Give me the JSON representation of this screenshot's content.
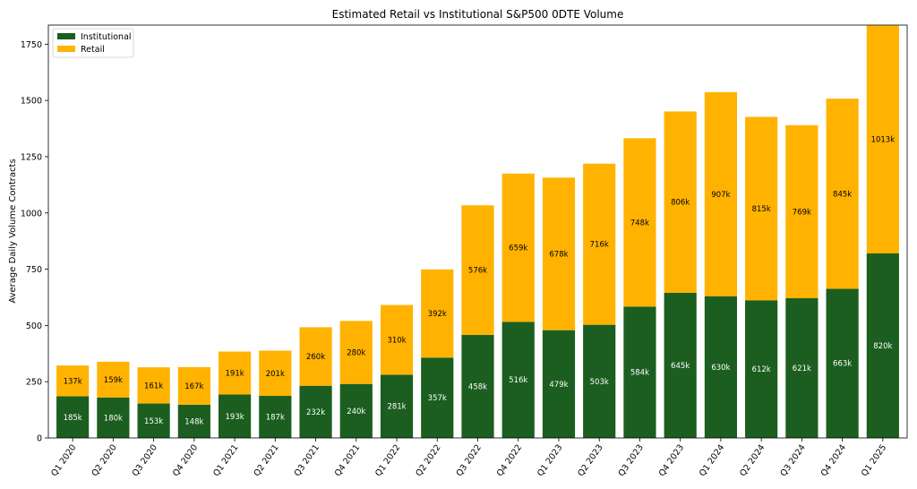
{
  "chart_data": {
    "type": "bar",
    "stacked": true,
    "title": "Estimated Retail vs Institutional S&P500 0DTE Volume",
    "xlabel": "",
    "ylabel": "Average Daily Volume Contracts",
    "ylim": [
      0,
      1835
    ],
    "yticks": [
      0,
      250,
      500,
      750,
      1000,
      1250,
      1500,
      1750
    ],
    "legend_position": "top-left",
    "grid": false,
    "categories": [
      "Q1 2020",
      "Q2 2020",
      "Q3 2020",
      "Q4 2020",
      "Q1 2021",
      "Q2 2021",
      "Q3 2021",
      "Q4 2021",
      "Q1 2022",
      "Q2 2022",
      "Q3 2022",
      "Q4 2022",
      "Q1 2023",
      "Q2 2023",
      "Q3 2023",
      "Q4 2023",
      "Q1 2024",
      "Q2 2024",
      "Q3 2024",
      "Q4 2024",
      "Q1 2025"
    ],
    "series": [
      {
        "name": "Institutional",
        "color": "#1b5e20",
        "label_color": "#ffffff",
        "values": [
          185,
          180,
          153,
          148,
          193,
          187,
          232,
          240,
          281,
          357,
          458,
          516,
          479,
          503,
          584,
          645,
          630,
          612,
          621,
          663,
          820
        ],
        "labels": [
          "185k",
          "180k",
          "153k",
          "148k",
          "193k",
          "187k",
          "232k",
          "240k",
          "281k",
          "357k",
          "458k",
          "516k",
          "479k",
          "503k",
          "584k",
          "645k",
          "630k",
          "612k",
          "621k",
          "663k",
          "820k"
        ]
      },
      {
        "name": "Retail",
        "color": "#ffb300",
        "label_color": "#000000",
        "values": [
          137,
          159,
          161,
          167,
          191,
          201,
          260,
          280,
          310,
          392,
          576,
          659,
          678,
          716,
          748,
          806,
          907,
          815,
          769,
          845,
          1013
        ],
        "labels": [
          "137k",
          "159k",
          "161k",
          "167k",
          "191k",
          "201k",
          "260k",
          "280k",
          "310k",
          "392k",
          "576k",
          "659k",
          "678k",
          "716k",
          "748k",
          "806k",
          "907k",
          "815k",
          "769k",
          "845k",
          "1013k"
        ]
      }
    ]
  }
}
